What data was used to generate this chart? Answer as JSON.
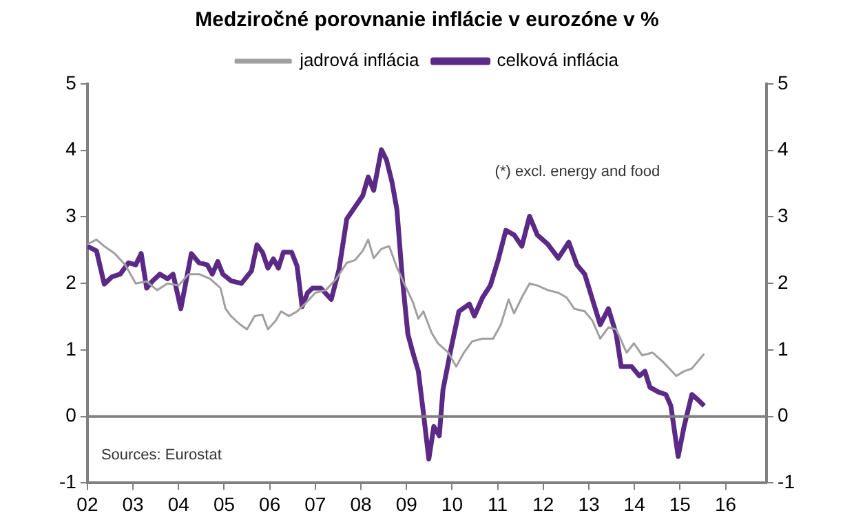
{
  "chart_data": {
    "type": "line",
    "title": "Medziročné porovnanie inflácie v eurozóne v %",
    "annotations": [
      "(*) excl. energy and food",
      "Sources: Eurostat"
    ],
    "xlim": [
      2002,
      2016.9
    ],
    "xticks": [
      {
        "value": 2002,
        "label": "02"
      },
      {
        "value": 2003,
        "label": "03"
      },
      {
        "value": 2004,
        "label": "04"
      },
      {
        "value": 2005,
        "label": "05"
      },
      {
        "value": 2006,
        "label": "06"
      },
      {
        "value": 2007,
        "label": "07"
      },
      {
        "value": 2008,
        "label": "08"
      },
      {
        "value": 2009,
        "label": "09"
      },
      {
        "value": 2010,
        "label": "10"
      },
      {
        "value": 2011,
        "label": "11"
      },
      {
        "value": 2012,
        "label": "12"
      },
      {
        "value": 2013,
        "label": "13"
      },
      {
        "value": 2014,
        "label": "14"
      },
      {
        "value": 2015,
        "label": "15"
      },
      {
        "value": 2016,
        "label": "16"
      }
    ],
    "ylim": [
      -1,
      5
    ],
    "yticks": [
      -1,
      0,
      1,
      2,
      3,
      4,
      5
    ],
    "y2lim": [
      -1,
      5
    ],
    "y2ticks": [
      -1,
      0,
      1,
      2,
      3,
      4,
      5
    ],
    "ref_lines": [
      {
        "axis": "y",
        "value": 0,
        "color": "#808080"
      }
    ],
    "grid": false,
    "legend": "top",
    "marker": "none",
    "line_style": "solid",
    "series": [
      {
        "name": "celková inflácia",
        "color": "#5b2a86",
        "x": [
          2002.0,
          2002.2,
          2002.37,
          2002.54,
          2002.72,
          2002.9,
          2003.06,
          2003.18,
          2003.3,
          2003.42,
          2003.59,
          2003.76,
          2003.88,
          2004.05,
          2004.28,
          2004.45,
          2004.63,
          2004.74,
          2004.86,
          2004.97,
          2005.15,
          2005.38,
          2005.6,
          2005.72,
          2005.84,
          2005.96,
          2006.08,
          2006.19,
          2006.3,
          2006.48,
          2006.6,
          2006.71,
          2006.83,
          2006.94,
          2007.12,
          2007.35,
          2007.52,
          2007.69,
          2007.87,
          2008.04,
          2008.16,
          2008.28,
          2008.45,
          2008.56,
          2008.68,
          2008.79,
          2008.91,
          2009.03,
          2009.14,
          2009.26,
          2009.37,
          2009.49,
          2009.6,
          2009.72,
          2009.8,
          2009.98,
          2010.15,
          2010.38,
          2010.49,
          2010.67,
          2010.84,
          2011.01,
          2011.18,
          2011.36,
          2011.53,
          2011.7,
          2011.87,
          2012.1,
          2012.33,
          2012.56,
          2012.74,
          2012.91,
          2013.08,
          2013.25,
          2013.43,
          2013.6,
          2013.71,
          2013.94,
          2014.11,
          2014.23,
          2014.34,
          2014.52,
          2014.69,
          2014.8,
          2014.96,
          2015.09,
          2015.26,
          2015.38,
          2015.53
        ],
        "values": [
          2.56,
          2.49,
          1.99,
          2.1,
          2.14,
          2.31,
          2.28,
          2.45,
          1.93,
          2.03,
          2.14,
          2.07,
          2.14,
          1.62,
          2.45,
          2.31,
          2.28,
          2.14,
          2.33,
          2.14,
          2.04,
          2.0,
          2.19,
          2.58,
          2.47,
          2.23,
          2.37,
          2.23,
          2.47,
          2.47,
          2.26,
          1.65,
          1.86,
          1.93,
          1.93,
          1.76,
          2.21,
          2.97,
          3.15,
          3.32,
          3.6,
          3.4,
          4.01,
          3.86,
          3.53,
          3.11,
          2.07,
          1.24,
          0.96,
          0.68,
          0.06,
          -0.64,
          -0.15,
          -0.29,
          0.4,
          1.03,
          1.58,
          1.69,
          1.51,
          1.79,
          1.97,
          2.35,
          2.8,
          2.73,
          2.56,
          3.01,
          2.73,
          2.59,
          2.38,
          2.62,
          2.28,
          2.14,
          1.76,
          1.38,
          1.62,
          1.24,
          0.75,
          0.75,
          0.61,
          0.68,
          0.44,
          0.37,
          0.33,
          0.16,
          -0.6,
          -0.15,
          0.33,
          0.26,
          0.16
        ]
      },
      {
        "name": "jadrová inflácia",
        "color": "#a0a0a0",
        "x": [
          2002.0,
          2002.2,
          2002.37,
          2002.6,
          2002.83,
          2003.06,
          2003.3,
          2003.53,
          2003.76,
          2004.0,
          2004.22,
          2004.45,
          2004.69,
          2004.92,
          2005.03,
          2005.15,
          2005.32,
          2005.5,
          2005.67,
          2005.84,
          2005.96,
          2006.13,
          2006.25,
          2006.42,
          2006.6,
          2006.77,
          2007.0,
          2007.23,
          2007.46,
          2007.69,
          2007.87,
          2008.04,
          2008.16,
          2008.28,
          2008.45,
          2008.62,
          2008.79,
          2008.97,
          2009.14,
          2009.26,
          2009.37,
          2009.55,
          2009.69,
          2009.92,
          2010.09,
          2010.26,
          2010.44,
          2010.67,
          2010.9,
          2011.07,
          2011.24,
          2011.36,
          2011.53,
          2011.7,
          2011.87,
          2012.1,
          2012.33,
          2012.51,
          2012.68,
          2012.91,
          2013.08,
          2013.25,
          2013.43,
          2013.6,
          2013.83,
          2013.99,
          2014.17,
          2014.4,
          2014.63,
          2014.92,
          2015.09,
          2015.26,
          2015.38,
          2015.53
        ],
        "values": [
          2.59,
          2.66,
          2.56,
          2.45,
          2.28,
          2.0,
          2.03,
          1.9,
          2.0,
          1.97,
          2.14,
          2.14,
          2.07,
          1.93,
          1.62,
          1.51,
          1.4,
          1.31,
          1.51,
          1.53,
          1.31,
          1.44,
          1.58,
          1.51,
          1.58,
          1.69,
          1.86,
          1.9,
          2.07,
          2.31,
          2.35,
          2.49,
          2.66,
          2.38,
          2.52,
          2.56,
          2.24,
          1.97,
          1.72,
          1.47,
          1.58,
          1.26,
          1.1,
          0.96,
          0.75,
          0.96,
          1.13,
          1.17,
          1.17,
          1.38,
          1.76,
          1.55,
          1.79,
          2.0,
          1.97,
          1.9,
          1.86,
          1.79,
          1.62,
          1.58,
          1.44,
          1.17,
          1.34,
          1.31,
          0.96,
          1.1,
          0.92,
          0.96,
          0.82,
          0.61,
          0.68,
          0.72,
          0.82,
          0.94
        ]
      }
    ]
  }
}
